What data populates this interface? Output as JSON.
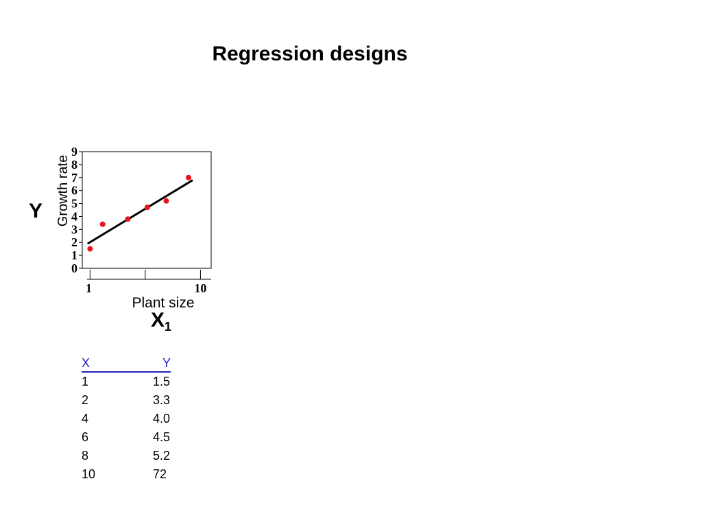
{
  "slide": {
    "title": "Regression designs",
    "y_symbol": "Y",
    "x_symbol": "X",
    "x_subscript": "1"
  },
  "chart_data": {
    "type": "scatter",
    "title": "",
    "xlabel": "Plant size",
    "ylabel": "Growth rate",
    "x_scale": "log",
    "xlim": [
      0.85,
      12.5
    ],
    "ylim": [
      0,
      9
    ],
    "x_tick_labels": [
      {
        "value": 1,
        "label": "1"
      },
      {
        "value": 10,
        "label": "10"
      }
    ],
    "x_minor_ticks": [
      1,
      3.16,
      10
    ],
    "y_ticks": [
      0,
      1,
      2,
      3,
      4,
      5,
      6,
      7,
      8,
      9
    ],
    "grid": false,
    "points": [
      {
        "x": 1,
        "y": 1.5
      },
      {
        "x": 1.3,
        "y": 3.4
      },
      {
        "x": 2.2,
        "y": 3.8
      },
      {
        "x": 3.3,
        "y": 4.7
      },
      {
        "x": 4.9,
        "y": 5.2
      },
      {
        "x": 7.8,
        "y": 7.0
      }
    ],
    "fit_line": {
      "x": [
        0.95,
        8.5
      ],
      "y": [
        1.9,
        6.8
      ]
    },
    "point_color": "#e8141b",
    "line_color": "#000000"
  },
  "table": {
    "headers": [
      "X",
      "Y"
    ],
    "rows": [
      [
        "1",
        "1.5"
      ],
      [
        "2",
        "3.3"
      ],
      [
        "4",
        "4.0"
      ],
      [
        "6",
        "4.5"
      ],
      [
        "8",
        "5.2"
      ],
      [
        "10",
        "72"
      ]
    ],
    "header_color": "#2222bb"
  }
}
